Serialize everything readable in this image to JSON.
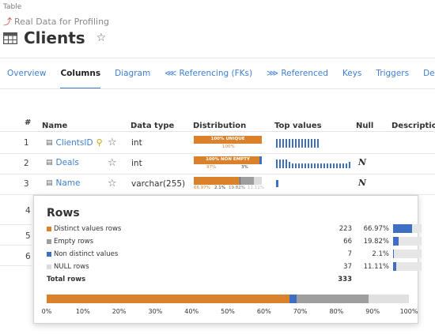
{
  "breadcrumb": {
    "type": "Table",
    "database": "Real Data for Profiling"
  },
  "title": "Clients",
  "tabs": [
    {
      "label": "Overview"
    },
    {
      "label": "Columns",
      "active": true
    },
    {
      "label": "Diagram"
    },
    {
      "label": "Referencing (FKs)"
    },
    {
      "label": "Referenced"
    },
    {
      "label": "Keys"
    },
    {
      "label": "Triggers"
    },
    {
      "label": "Dependen"
    }
  ],
  "grid_headers": {
    "num": "#",
    "name": "Name",
    "type": "Data type",
    "dist": "Distribution",
    "top": "Top values",
    "null": "Null",
    "desc": "Descriptio"
  },
  "rows": [
    {
      "num": "1",
      "name": "ClientsID",
      "type": "int",
      "dist_label": "100% UNIQUE",
      "dist_sub": [
        "100%"
      ],
      "null": ""
    },
    {
      "num": "2",
      "name": "Deals",
      "type": "int",
      "dist_label": "100% NON EMPTY",
      "dist_sub": [
        "97%",
        "3%"
      ],
      "null": "N"
    },
    {
      "num": "3",
      "name": "Name",
      "type": "varchar(255)",
      "dist_label": "",
      "dist_sub": [
        "66.97%",
        "2.1%",
        "19.82%",
        "11.11%"
      ],
      "null": "N"
    }
  ],
  "hidden_rows": [
    "4",
    "5",
    "6"
  ],
  "popup": {
    "title": "Rows",
    "items": [
      {
        "label": "Distinct values rows",
        "count": "223",
        "pct": "66.97%",
        "fraction": 0.6697,
        "color": "#d9822b"
      },
      {
        "label": "Empty rows",
        "count": "66",
        "pct": "19.82%",
        "fraction": 0.1982,
        "color": "#9e9e9e"
      },
      {
        "label": "Non distinct values",
        "count": "7",
        "pct": "2.1%",
        "fraction": 0.021,
        "color": "#3f6fc3"
      },
      {
        "label": "NULL rows",
        "count": "37",
        "pct": "11.11%",
        "fraction": 0.1111,
        "color": "#dcdcdc"
      }
    ],
    "total_label": "Total rows",
    "total_count": "333",
    "axis_ticks": [
      "0%",
      "10%",
      "20%",
      "30%",
      "40%",
      "50%",
      "60%",
      "70%",
      "80%",
      "90%",
      "100%"
    ]
  },
  "colors": {
    "accent": "#3f7fcf",
    "distinct": "#d9822b",
    "empty": "#9e9e9e",
    "non_distinct": "#3f6fc3",
    "null": "#dcdcdc"
  }
}
